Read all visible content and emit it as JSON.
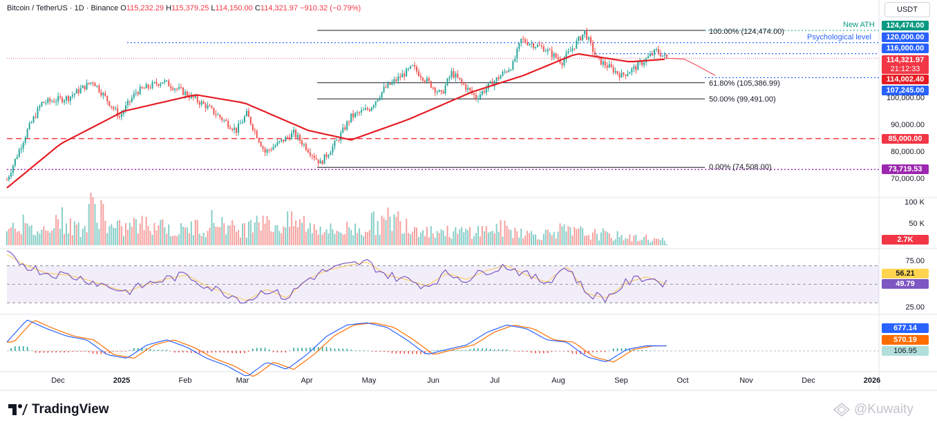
{
  "header": {
    "symbol": "Bitcoin / TetherUS · 1D · Binance",
    "o_label": "O",
    "o": "115,232.29",
    "h_label": "H",
    "h": "115,379.25",
    "l_label": "L",
    "l": "114,150.00",
    "c_label": "C",
    "c": "114,321.97",
    "change": "−910.32 (−0.79%)"
  },
  "currency": "USDT",
  "price_axis": [
    "100,000.00",
    "90,000.00",
    "80,000.00",
    "70,000.00"
  ],
  "tags": {
    "ath": "124,474.00",
    "psych": "120,000.00",
    "r116": "116,000.00",
    "last": "114,321.97",
    "countdown": "21:12:33",
    "sma": "114,002.40",
    "s107": "107,245.00",
    "s85": "85,000.00",
    "s73": "73,719.53",
    "vol": "2.7K",
    "rsi_ma": "56.21",
    "rsi": "49.79",
    "macd": "677.14",
    "signal": "570.19",
    "hist": "106.95"
  },
  "notes": {
    "new_ath": "New ATH",
    "psych": "Psychological level"
  },
  "fib": {
    "f100": "100.00% (124,474.00)",
    "f618": "61.80% (105,386.99)",
    "f50": "50.00% (99,491.00)",
    "f0": "0.00% (74,508.00)"
  },
  "volume_axis": [
    "100 K",
    "50 K"
  ],
  "rsi_axis": [
    "75.00",
    "25.00"
  ],
  "x_axis": [
    "Dec",
    "2025",
    "Feb",
    "Mar",
    "Apr",
    "May",
    "Jun",
    "Jul",
    "Aug",
    "Sep",
    "Oct",
    "Nov",
    "Dec",
    "2026"
  ],
  "brand": "TradingView",
  "watermark": "@Kuwaity",
  "colors": {
    "up": "#26a69a",
    "down": "#ef5350",
    "sma": "#e51c23",
    "rsi": "#7e57c2",
    "macd": "#2962ff",
    "signal": "#ff6d00"
  },
  "chart_data": {
    "type": "candlestick",
    "x_start": "2024-11-05",
    "y_range": [
      66000,
      128000
    ],
    "series": [
      {
        "name": "BTC/USDT",
        "dates": [
          "2024-11-05",
          "2024-11-15",
          "2024-11-22",
          "2024-12-05",
          "2024-12-17",
          "2024-12-30",
          "2025-01-07",
          "2025-01-20",
          "2025-01-30",
          "2025-02-10",
          "2025-02-25",
          "2025-03-02",
          "2025-03-11",
          "2025-03-25",
          "2025-04-07",
          "2025-04-15",
          "2025-04-22",
          "2025-05-01",
          "2025-05-08",
          "2025-05-22",
          "2025-06-05",
          "2025-06-10",
          "2025-06-22",
          "2025-07-01",
          "2025-07-10",
          "2025-07-14",
          "2025-07-25",
          "2025-08-03",
          "2025-08-14",
          "2025-08-20",
          "2025-09-01",
          "2025-09-08",
          "2025-09-18",
          "2025-09-23"
        ],
        "values": [
          70000,
          88000,
          98000,
          100000,
          106000,
          93000,
          102000,
          106000,
          102000,
          97000,
          88000,
          94000,
          80000,
          87000,
          76000,
          84000,
          93000,
          96000,
          103000,
          111000,
          101000,
          109000,
          100000,
          106000,
          112000,
          121000,
          118000,
          113000,
          124000,
          114000,
          108000,
          111000,
          117000,
          114322
        ]
      },
      {
        "name": "SMA",
        "dates": [
          "2024-11-05",
          "2024-12-01",
          "2025-01-01",
          "2025-02-05",
          "2025-03-01",
          "2025-04-01",
          "2025-04-22",
          "2025-05-20",
          "2025-06-20",
          "2025-07-15",
          "2025-08-10",
          "2025-09-05",
          "2025-09-23"
        ],
        "values": [
          67000,
          83000,
          95000,
          101000,
          98000,
          88000,
          84500,
          92000,
          102000,
          108000,
          116000,
          113000,
          114002
        ]
      }
    ],
    "volume": [
      60,
      40,
      70,
      50,
      98,
      45,
      55,
      60,
      40,
      50,
      65,
      45,
      80,
      55,
      60,
      50,
      40,
      45,
      60,
      70,
      50,
      40,
      35,
      40,
      45,
      40,
      30,
      40,
      35,
      30,
      25,
      20,
      15,
      2.7
    ],
    "rsi": [
      82,
      70,
      62,
      60,
      55,
      48,
      42,
      50,
      56,
      60,
      48,
      40,
      32,
      45,
      35,
      55,
      65,
      70,
      74,
      60,
      55,
      48,
      62,
      55,
      65,
      70,
      60,
      52,
      70,
      40,
      35,
      52,
      58,
      49.79
    ],
    "macd": [
      1200,
      4200,
      3000,
      2000,
      1500,
      -500,
      -1000,
      800,
      1500,
      500,
      -1000,
      -2000,
      -3500,
      -1500,
      -2500,
      -500,
      2000,
      3500,
      3800,
      3200,
      1500,
      -500,
      200,
      800,
      2500,
      3500,
      3000,
      1500,
      1200,
      -800,
      -1500,
      200,
      700,
      677
    ]
  }
}
